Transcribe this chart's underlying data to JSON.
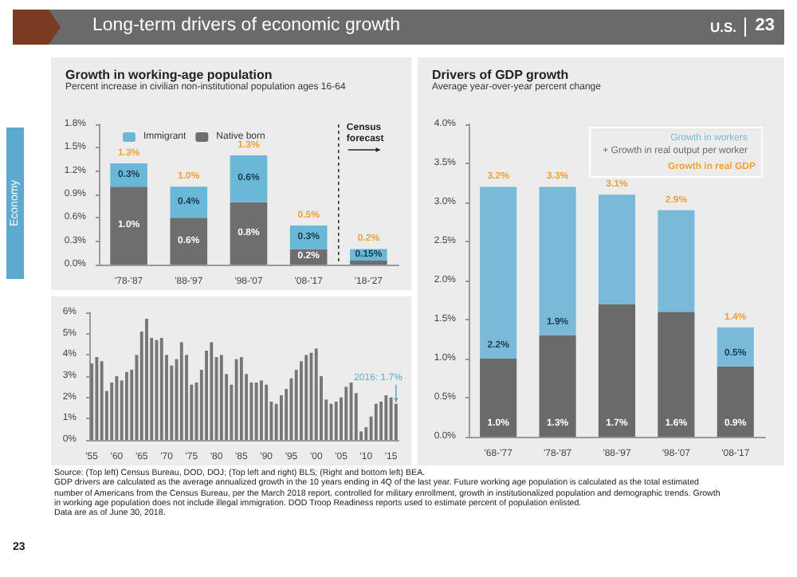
{
  "chart_data": [
    {
      "type": "bar",
      "title": "Growth in working-age population",
      "subtitle": "Percent increase in civilian non-institutional population ages 16-64",
      "categories": [
        "'78-'87",
        "'88-'97",
        "'98-'07",
        "'08-'17",
        "'18-'27"
      ],
      "stacked": true,
      "series": [
        {
          "name": "Native born",
          "color": "#6e6e6e",
          "values": [
            1.0,
            0.6,
            0.8,
            0.2,
            0.05
          ],
          "value_labels": [
            "1.0%",
            "0.6%",
            "0.8%",
            "0.2%",
            null
          ]
        },
        {
          "name": "Immigrant",
          "color": "#6ab8d8",
          "values": [
            0.3,
            0.4,
            0.6,
            0.3,
            0.15
          ],
          "value_labels": [
            "0.3%",
            "0.4%",
            "0.6%",
            "0.3%",
            "0.15%"
          ]
        }
      ],
      "totals": [
        "1.3%",
        "1.0%",
        "1.3%",
        "0.5%",
        "0.2%"
      ],
      "ylim": [
        0,
        1.8
      ],
      "yticks": [
        {
          "value": 0,
          "label": "0.0%"
        },
        {
          "value": 0.3,
          "label": "0.3%"
        },
        {
          "value": 0.6,
          "label": "0.6%"
        },
        {
          "value": 0.9,
          "label": "0.9%"
        },
        {
          "value": 1.2,
          "label": "1.2%"
        },
        {
          "value": 1.5,
          "label": "1.5%"
        },
        {
          "value": 1.8,
          "label": "1.8%"
        }
      ],
      "legend": "top left",
      "annotations": [
        "Long-term drivers of economic growth",
        "U.S.",
        "23",
        "Economy",
        "23",
        "Census forecast"
      ]
    },
    {
      "type": "bar",
      "title": "Drivers of GDP growth",
      "subtitle": "Average year-over-year percent change",
      "categories": [
        "'68-'77",
        "'78-'87",
        "'88-'97",
        "'98-'07",
        "'08-'17"
      ],
      "stacked": true,
      "series": [
        {
          "name": "+ Growth in real output per worker",
          "color": "#6a6a6a",
          "values": [
            1.0,
            1.3,
            1.7,
            1.6,
            0.9
          ],
          "value_labels": [
            "1.0%",
            "1.3%",
            "1.7%",
            "1.6%",
            "0.9%"
          ]
        },
        {
          "name": "Growth in workers",
          "color": "#7ab9d8",
          "values": [
            2.2,
            1.9,
            1.4,
            1.3,
            0.5
          ],
          "value_labels": [
            "2.2%",
            "1.9%",
            null,
            null,
            "0.5%"
          ]
        }
      ],
      "totals": [
        "3.2%",
        "3.3%",
        "3.1%",
        "2.9%",
        "1.4%"
      ],
      "ylim": [
        0,
        4
      ],
      "yticks": [
        {
          "value": 0,
          "label": "0.0%"
        },
        {
          "value": 0.5,
          "label": "0.5%"
        },
        {
          "value": 1,
          "label": "1.0%"
        },
        {
          "value": 1.5,
          "label": "1.5%"
        },
        {
          "value": 2,
          "label": "2.0%"
        },
        {
          "value": 2.5,
          "label": "2.5%"
        },
        {
          "value": 3,
          "label": "3.0%"
        },
        {
          "value": 3.5,
          "label": "3.5%"
        },
        {
          "value": 4,
          "label": "4.0%"
        }
      ],
      "legend": "top right",
      "annotations": [
        "Growth in real GDP"
      ]
    },
    {
      "type": "bar",
      "color": "#767676",
      "categories": [
        "'55",
        null,
        null,
        null,
        null,
        "'60",
        null,
        null,
        null,
        null,
        "'65",
        null,
        null,
        null,
        null,
        "'70",
        null,
        null,
        null,
        null,
        "'75",
        null,
        null,
        null,
        null,
        "'80",
        null,
        null,
        null,
        null,
        "'85",
        null,
        null,
        null,
        null,
        "'90",
        null,
        null,
        null,
        null,
        "'95",
        null,
        null,
        null,
        null,
        "'00",
        null,
        null,
        null,
        null,
        "'05",
        null,
        null,
        null,
        null,
        "'10",
        null,
        null,
        null,
        null,
        "'15",
        null
      ],
      "values": [
        3.6,
        3.9,
        3.7,
        2.3,
        2.7,
        3.0,
        2.8,
        3.2,
        3.3,
        4.0,
        5.1,
        5.7,
        4.8,
        4.7,
        4.8,
        4.0,
        3.5,
        3.8,
        4.6,
        4.0,
        2.6,
        2.7,
        3.3,
        4.2,
        4.6,
        3.9,
        4.0,
        3.1,
        2.6,
        3.8,
        3.9,
        3.1,
        2.7,
        2.7,
        2.8,
        2.6,
        1.8,
        1.7,
        2.1,
        2.4,
        2.9,
        3.3,
        3.7,
        4.0,
        4.1,
        4.3,
        3.0,
        1.9,
        1.7,
        1.8,
        2.0,
        2.5,
        2.7,
        2.2,
        0.4,
        0.6,
        1.1,
        1.7,
        1.8,
        2.1,
        2.0,
        1.7
      ],
      "ylim": [
        0,
        6
      ],
      "yticks": [
        {
          "value": 0,
          "label": "0%"
        },
        {
          "value": 1,
          "label": "1%"
        },
        {
          "value": 2,
          "label": "2%"
        },
        {
          "value": 3,
          "label": "3%"
        },
        {
          "value": 4,
          "label": "4%"
        },
        {
          "value": 5,
          "label": "5%"
        },
        {
          "value": 6,
          "label": "6%"
        }
      ],
      "annotations": [
        {
          "text": "2016: 1.7%",
          "y": 1.7
        },
        "Source: (Top left) Census Bureau, DOD, DOJ; (Top left and right) BLS; (Right and bottom left) BEA.",
        "GDP drivers are calculated as the average annualized growth in the 10 years ending in 4Q of the last year. Future working age population is calculated as the total estimated number of Americans from the Census Bureau, per the March 2018 report, controlled for military enrollment, growth in institutionalized population and demographic trends. Growth in working age population does not include illegal immigration. DOD Troop Readiness reports used to estimate percent of population enlisted.",
        "Data are as of June 30, 2018."
      ]
    }
  ]
}
